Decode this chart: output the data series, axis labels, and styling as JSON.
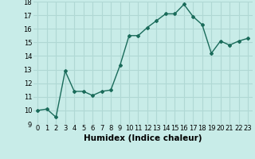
{
  "x": [
    0,
    1,
    2,
    3,
    4,
    5,
    6,
    7,
    8,
    9,
    10,
    11,
    12,
    13,
    14,
    15,
    16,
    17,
    18,
    19,
    20,
    21,
    22,
    23
  ],
  "y": [
    10.0,
    10.1,
    9.5,
    12.9,
    11.4,
    11.4,
    11.1,
    11.4,
    11.5,
    13.3,
    15.5,
    15.5,
    16.1,
    16.6,
    17.1,
    17.1,
    17.8,
    16.9,
    16.3,
    14.2,
    15.1,
    14.8,
    15.1,
    15.3
  ],
  "line_color": "#1a6b5a",
  "marker": "D",
  "marker_size": 2.0,
  "line_width": 1.0,
  "xlabel": "Humidex (Indice chaleur)",
  "xlim": [
    -0.5,
    23.5
  ],
  "ylim": [
    9,
    18
  ],
  "yticks": [
    9,
    10,
    11,
    12,
    13,
    14,
    15,
    16,
    17,
    18
  ],
  "xticks": [
    0,
    1,
    2,
    3,
    4,
    5,
    6,
    7,
    8,
    9,
    10,
    11,
    12,
    13,
    14,
    15,
    16,
    17,
    18,
    19,
    20,
    21,
    22,
    23
  ],
  "background_color": "#c8ece8",
  "grid_color": "#b0d8d4",
  "tick_fontsize": 6.0,
  "xlabel_fontsize": 7.5
}
